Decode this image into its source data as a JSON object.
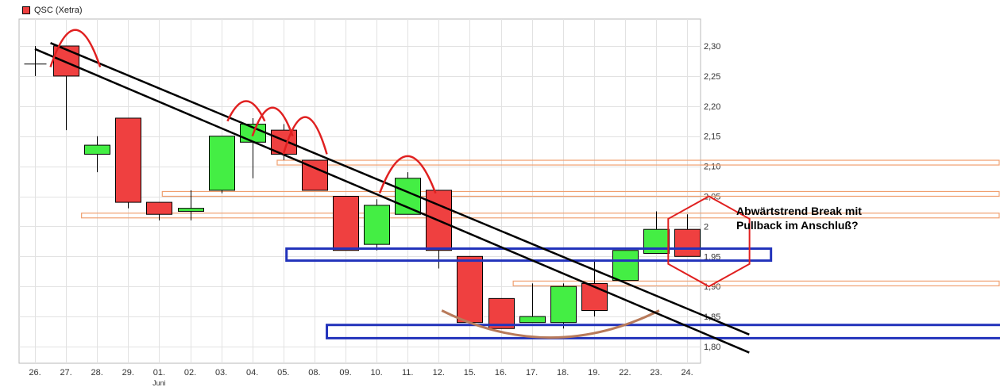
{
  "legend": {
    "series_name": "QSC (Xetra)",
    "color": "#ef4040"
  },
  "annotation": {
    "line1": "Abwärtstrend Break mit",
    "line2": "Pullback im Anschluß?"
  },
  "chart_data": {
    "type": "candlestick",
    "title": "",
    "series_name": "QSC (Xetra)",
    "month_label": "Juni",
    "y_ticks": [
      "2,30",
      "2,25",
      "2,20",
      "2,15",
      "2,10",
      "2,05",
      "2",
      "1,95",
      "1,90",
      "1,85",
      "1,80"
    ],
    "ylim": [
      1.76,
      2.34
    ],
    "grid": true,
    "colors": {
      "up": "#44ee44",
      "down": "#ef4040",
      "cross": "#000000",
      "trend": "#000000",
      "arc": "#e02020",
      "hexagon": "#e02020",
      "support_box": "#2233bb",
      "resistance": "#f0a070",
      "bowl": "#b87a5a"
    },
    "candles": [
      {
        "label": "26.",
        "open": 2.27,
        "close": 2.27,
        "high": 2.3,
        "low": 2.25,
        "color": "cross"
      },
      {
        "label": "27.",
        "open": 2.3,
        "close": 2.25,
        "high": 2.3,
        "low": 2.16,
        "color": "down"
      },
      {
        "label": "28.",
        "open": 2.12,
        "close": 2.135,
        "high": 2.15,
        "low": 2.09,
        "color": "up"
      },
      {
        "label": "29.",
        "open": 2.18,
        "close": 2.04,
        "high": 2.18,
        "low": 2.03,
        "color": "down"
      },
      {
        "label": "01.",
        "open": 2.04,
        "close": 2.02,
        "high": 2.04,
        "low": 2.01,
        "color": "down"
      },
      {
        "label": "02.",
        "open": 2.025,
        "close": 2.03,
        "high": 2.06,
        "low": 2.01,
        "color": "up"
      },
      {
        "label": "03.",
        "open": 2.06,
        "close": 2.15,
        "high": 2.15,
        "low": 2.055,
        "color": "up"
      },
      {
        "label": "04.",
        "open": 2.14,
        "close": 2.17,
        "high": 2.18,
        "low": 2.08,
        "color": "up"
      },
      {
        "label": "05.",
        "open": 2.16,
        "close": 2.12,
        "high": 2.17,
        "low": 2.11,
        "color": "down"
      },
      {
        "label": "08.",
        "open": 2.11,
        "close": 2.06,
        "high": 2.11,
        "low": 2.06,
        "color": "down"
      },
      {
        "label": "09.",
        "open": 2.05,
        "close": 1.96,
        "high": 2.05,
        "low": 1.96,
        "color": "down"
      },
      {
        "label": "10.",
        "open": 1.97,
        "close": 2.035,
        "high": 2.045,
        "low": 1.96,
        "color": "up"
      },
      {
        "label": "11.",
        "open": 2.02,
        "close": 2.08,
        "high": 2.09,
        "low": 2.02,
        "color": "up"
      },
      {
        "label": "12.",
        "open": 2.06,
        "close": 1.96,
        "high": 2.06,
        "low": 1.93,
        "color": "down"
      },
      {
        "label": "15.",
        "open": 1.95,
        "close": 1.84,
        "high": 1.95,
        "low": 1.84,
        "color": "down"
      },
      {
        "label": "16.",
        "open": 1.88,
        "close": 1.83,
        "high": 1.88,
        "low": 1.83,
        "color": "down"
      },
      {
        "label": "17.",
        "open": 1.84,
        "close": 1.85,
        "high": 1.905,
        "low": 1.84,
        "color": "up"
      },
      {
        "label": "18.",
        "open": 1.84,
        "close": 1.9,
        "high": 1.905,
        "low": 1.83,
        "color": "up"
      },
      {
        "label": "19.",
        "open": 1.905,
        "close": 1.86,
        "high": 1.945,
        "low": 1.85,
        "color": "down"
      },
      {
        "label": "22.",
        "open": 1.91,
        "close": 1.96,
        "high": 1.96,
        "low": 1.91,
        "color": "up"
      },
      {
        "label": "23.",
        "open": 1.955,
        "close": 1.995,
        "high": 2.025,
        "low": 1.955,
        "color": "up"
      },
      {
        "label": "24.",
        "open": 1.995,
        "close": 1.95,
        "high": 2.02,
        "low": 1.95,
        "color": "down"
      }
    ],
    "annotations": {
      "trend_lines": [
        {
          "from": [
            0,
            2.295
          ],
          "to": [
            23.0,
            1.79
          ]
        },
        {
          "from": [
            0.5,
            2.305
          ],
          "to": [
            23.0,
            1.82
          ]
        }
      ],
      "arcs": [
        {
          "from": 0.5,
          "to": 2.1,
          "top": 2.33,
          "base": 2.265
        },
        {
          "from": 6.2,
          "to": 7.4,
          "top": 2.21,
          "base": 2.175
        },
        {
          "from": 7.0,
          "to": 8.3,
          "top": 2.2,
          "base": 2.15
        },
        {
          "from": 8.0,
          "to": 9.4,
          "top": 2.185,
          "base": 2.12
        },
        {
          "from": 11.1,
          "to": 12.9,
          "top": 2.12,
          "base": 2.055
        }
      ],
      "resistance_levels": [
        {
          "from": 7.8,
          "price": 2.106
        },
        {
          "from": 4.1,
          "price": 2.054
        },
        {
          "from": 1.5,
          "price": 2.018
        },
        {
          "from": 15.4,
          "price": 1.905
        }
      ],
      "support_boxes": [
        {
          "from": 8.1,
          "to": 23.7,
          "top": 1.963,
          "bottom": 1.943
        },
        {
          "from": 9.4,
          "to": 31.8,
          "top": 1.836,
          "bottom": 1.814
        }
      ],
      "bowl": {
        "from": 13.1,
        "to": 20.1,
        "base": 1.86,
        "bottom": 1.815
      },
      "hexagon": {
        "center_x": 21.7,
        "center_y": 1.975,
        "top": 2.05,
        "bottom": 1.9
      }
    }
  }
}
